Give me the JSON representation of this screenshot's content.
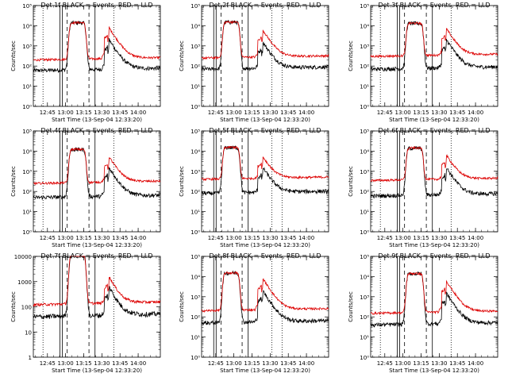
{
  "figure": {
    "background": "#ffffff",
    "events_color": "#000000",
    "lld_color": "#dd0000"
  },
  "chart_data": [
    {
      "type": "line",
      "title": "Det 1f BLACK = Events, RED = LLD",
      "xlabel": "Start Time (13-Sep-04 12:33:20)",
      "ylabel": "Counts/sec",
      "yscale": "log",
      "ylim": [
        1,
        100000
      ],
      "yticks": [
        "10⁰",
        "10¹",
        "10²",
        "10³",
        "10⁴",
        "10⁵"
      ],
      "xlim_min": [
        0,
        105
      ],
      "xticks": [
        "12:45",
        "13:00",
        "13:15",
        "13:30",
        "13:45",
        "14:00"
      ],
      "xtick_min": [
        11.67,
        26.67,
        41.67,
        56.67,
        71.67,
        86.67
      ],
      "solid_lines_min": [
        22,
        24,
        51
      ],
      "dashed_lines_min": [
        28,
        46
      ],
      "dotted_lines_min": [
        8,
        66.5
      ],
      "lld_base": 200,
      "event_base": 60,
      "plateau": 14000,
      "plateau_min": [
        30,
        43
      ],
      "flare_peak_min": 62.5,
      "flare_peaks": [
        8000,
        2000
      ],
      "series": [
        {
          "name": "BLACK = Events",
          "color": "#000000"
        },
        {
          "name": "RED = LLD",
          "color": "#dd0000"
        }
      ]
    },
    {
      "type": "line",
      "title": "Det 2f BLACK = Events, RED = LLD",
      "xlabel": "Start Time (13-Sep-04 12:33:20)",
      "ylabel": "Counts/sec",
      "yscale": "log",
      "ylim": [
        1,
        100000
      ],
      "yticks": [
        "10⁰",
        "10¹",
        "10²",
        "10³",
        "10⁴",
        "10⁵"
      ],
      "xlim_min": [
        0,
        105
      ],
      "xticks": [
        "12:45",
        "13:00",
        "13:15",
        "13:30",
        "13:45",
        "14:00"
      ],
      "xtick_min": [
        11.67,
        26.67,
        41.67,
        56.67,
        71.67,
        86.67
      ],
      "solid_lines_min": [
        10,
        12,
        38.5
      ],
      "dashed_lines_min": [
        16,
        33.5
      ],
      "dotted_lines_min": [
        58,
        66.5
      ],
      "lld_base": 250,
      "event_base": 70,
      "plateau": 15000,
      "plateau_min": [
        18,
        31
      ],
      "flare_peak_min": 50.5,
      "flare_peaks": [
        6000,
        1500
      ],
      "series": [
        {
          "name": "BLACK = Events",
          "color": "#000000"
        },
        {
          "name": "RED = LLD",
          "color": "#dd0000"
        }
      ]
    },
    {
      "type": "line",
      "title": "Det 3f BLACK = Events, RED = LLD",
      "xlabel": "Start Time (13-Sep-04 12:33:20)",
      "ylabel": "Counts/sec",
      "yscale": "log",
      "ylim": [
        1,
        100000
      ],
      "yticks": [
        "10⁰",
        "10¹",
        "10²",
        "10³",
        "10⁴",
        "10⁵"
      ],
      "xlim_min": [
        0,
        105
      ],
      "xticks": [
        "12:45",
        "13:00",
        "13:15",
        "13:30",
        "13:45",
        "14:00"
      ],
      "xtick_min": [
        11.67,
        26.67,
        41.67,
        56.67,
        71.67,
        86.67
      ],
      "solid_lines_min": [
        22,
        24,
        51
      ],
      "dashed_lines_min": [
        28,
        46
      ],
      "dotted_lines_min": [
        8,
        66.5
      ],
      "lld_base": 300,
      "event_base": 70,
      "plateau": 13000,
      "plateau_min": [
        30,
        43
      ],
      "flare_peak_min": 62.5,
      "flare_peaks": [
        7000,
        2000
      ],
      "series": [
        {
          "name": "BLACK = Events",
          "color": "#000000"
        },
        {
          "name": "RED = LLD",
          "color": "#dd0000"
        }
      ]
    },
    {
      "type": "line",
      "title": "Det 4f BLACK = Events, RED = LLD",
      "xlabel": "Start Time (13-Sep-04 12:33:20)",
      "ylabel": "Counts/sec",
      "yscale": "log",
      "ylim": [
        1,
        100000
      ],
      "yticks": [
        "10⁰",
        "10¹",
        "10²",
        "10³",
        "10⁴",
        "10⁵"
      ],
      "xlim_min": [
        0,
        105
      ],
      "xticks": [
        "12:45",
        "13:00",
        "13:15",
        "13:30",
        "13:45",
        "14:00"
      ],
      "xtick_min": [
        11.67,
        26.67,
        41.67,
        56.67,
        71.67,
        86.67
      ],
      "solid_lines_min": [
        22,
        24,
        51
      ],
      "dashed_lines_min": [
        28,
        46
      ],
      "dotted_lines_min": [
        8,
        66.5
      ],
      "lld_base": 250,
      "event_base": 50,
      "plateau": 12000,
      "plateau_min": [
        30,
        43
      ],
      "flare_peak_min": 62.5,
      "flare_peaks": [
        5000,
        1500
      ],
      "series": [
        {
          "name": "BLACK = Events",
          "color": "#000000"
        },
        {
          "name": "RED = LLD",
          "color": "#dd0000"
        }
      ]
    },
    {
      "type": "line",
      "title": "Det 5f BLACK = Events, RED = LLD",
      "xlabel": "Start Time (13-Sep-04 12:33:20)",
      "ylabel": "Counts/sec",
      "yscale": "log",
      "ylim": [
        1,
        100000
      ],
      "yticks": [
        "10⁰",
        "10¹",
        "10²",
        "10³",
        "10⁴",
        "10⁵"
      ],
      "xlim_min": [
        0,
        105
      ],
      "xticks": [
        "12:45",
        "13:00",
        "13:15",
        "13:30",
        "13:45",
        "14:00"
      ],
      "xtick_min": [
        11.67,
        26.67,
        41.67,
        56.67,
        71.67,
        86.67
      ],
      "solid_lines_min": [
        10,
        12,
        38.5
      ],
      "dashed_lines_min": [
        16,
        33.5
      ],
      "dotted_lines_min": [
        58,
        66.5
      ],
      "lld_base": 400,
      "event_base": 80,
      "plateau": 15000,
      "plateau_min": [
        18,
        31
      ],
      "flare_peak_min": 50.5,
      "flare_peaks": [
        5000,
        1500
      ],
      "series": [
        {
          "name": "BLACK = Events",
          "color": "#000000"
        },
        {
          "name": "RED = LLD",
          "color": "#dd0000"
        }
      ]
    },
    {
      "type": "line",
      "title": "Det 6f BLACK = Events, RED = LLD",
      "xlabel": "Start Time (13-Sep-04 12:33:20)",
      "ylabel": "Counts/sec",
      "yscale": "log",
      "ylim": [
        1,
        100000
      ],
      "yticks": [
        "10⁰",
        "10¹",
        "10²",
        "10³",
        "10⁴",
        "10⁵"
      ],
      "xlim_min": [
        0,
        105
      ],
      "xticks": [
        "12:45",
        "13:00",
        "13:15",
        "13:30",
        "13:45",
        "14:00"
      ],
      "xtick_min": [
        11.67,
        26.67,
        41.67,
        56.67,
        71.67,
        86.67
      ],
      "solid_lines_min": [
        22,
        24,
        51
      ],
      "dashed_lines_min": [
        28,
        46
      ],
      "dotted_lines_min": [
        8,
        66.5
      ],
      "lld_base": 350,
      "event_base": 60,
      "plateau": 14000,
      "plateau_min": [
        30,
        43
      ],
      "flare_peak_min": 62.5,
      "flare_peaks": [
        6000,
        1500
      ],
      "series": [
        {
          "name": "BLACK = Events",
          "color": "#000000"
        },
        {
          "name": "RED = LLD",
          "color": "#dd0000"
        }
      ]
    },
    {
      "type": "line",
      "title": "Det 7f BLACK = Events, RED = LLD",
      "xlabel": "Start Time (13-Sep-04 12:33:20)",
      "ylabel": "Counts/sec",
      "yscale": "log",
      "ylim": [
        1,
        10000
      ],
      "yticks": [
        "1",
        "10",
        "100",
        "1000",
        "10000"
      ],
      "xlim_min": [
        0,
        105
      ],
      "xticks": [
        "12:45",
        "13:00",
        "13:15",
        "13:30",
        "13:45",
        "14:00"
      ],
      "xtick_min": [
        11.67,
        26.67,
        41.67,
        56.67,
        71.67,
        86.67
      ],
      "solid_lines_min": [
        22,
        24,
        51
      ],
      "dashed_lines_min": [
        28,
        46
      ],
      "dotted_lines_min": [
        8,
        66.5
      ],
      "lld_base": 120,
      "event_base": 40,
      "plateau": 12000,
      "plateau_min": [
        30,
        43
      ],
      "flare_peak_min": 62.5,
      "flare_peaks": [
        1500,
        600
      ],
      "series": [
        {
          "name": "BLACK = Events",
          "color": "#000000"
        },
        {
          "name": "RED = LLD",
          "color": "#dd0000"
        }
      ]
    },
    {
      "type": "line",
      "title": "Det 8f BLACK = Events, RED = LLD",
      "xlabel": "Start Time (13-Sep-04 12:33:20)",
      "ylabel": "Counts/sec",
      "yscale": "log",
      "ylim": [
        1,
        100000
      ],
      "yticks": [
        "10⁰",
        "10¹",
        "10²",
        "10³",
        "10⁴",
        "10⁵"
      ],
      "xlim_min": [
        0,
        105
      ],
      "xticks": [
        "12:45",
        "13:00",
        "13:15",
        "13:30",
        "13:45",
        "14:00"
      ],
      "xtick_min": [
        11.67,
        26.67,
        41.67,
        56.67,
        71.67,
        86.67
      ],
      "solid_lines_min": [
        10,
        12,
        38.5
      ],
      "dashed_lines_min": [
        16,
        33.5
      ],
      "dotted_lines_min": [
        58,
        66.5
      ],
      "lld_base": 200,
      "event_base": 50,
      "plateau": 15000,
      "plateau_min": [
        18,
        31
      ],
      "flare_peak_min": 50.5,
      "flare_peaks": [
        8000,
        2000
      ],
      "series": [
        {
          "name": "BLACK = Events",
          "color": "#000000"
        },
        {
          "name": "RED = LLD",
          "color": "#dd0000"
        }
      ]
    },
    {
      "type": "line",
      "title": "Det 9f BLACK = Events, RED = LLD",
      "xlabel": "Start Time (13-Sep-04 12:33:20)",
      "ylabel": "Counts/sec",
      "yscale": "log",
      "ylim": [
        1,
        100000
      ],
      "yticks": [
        "10⁰",
        "10¹",
        "10²",
        "10³",
        "10⁴",
        "10⁵"
      ],
      "xlim_min": [
        0,
        105
      ],
      "xticks": [
        "12:45",
        "13:00",
        "13:15",
        "13:30",
        "13:45",
        "14:00"
      ],
      "xtick_min": [
        11.67,
        26.67,
        41.67,
        56.67,
        71.67,
        86.67
      ],
      "solid_lines_min": [
        22,
        24,
        51
      ],
      "dashed_lines_min": [
        28,
        46
      ],
      "dotted_lines_min": [
        8,
        66.5
      ],
      "lld_base": 150,
      "event_base": 40,
      "plateau": 14000,
      "plateau_min": [
        30,
        43
      ],
      "flare_peak_min": 62.5,
      "flare_peaks": [
        6000,
        1500
      ],
      "series": [
        {
          "name": "BLACK = Events",
          "color": "#000000"
        },
        {
          "name": "RED = LLD",
          "color": "#dd0000"
        }
      ]
    }
  ]
}
